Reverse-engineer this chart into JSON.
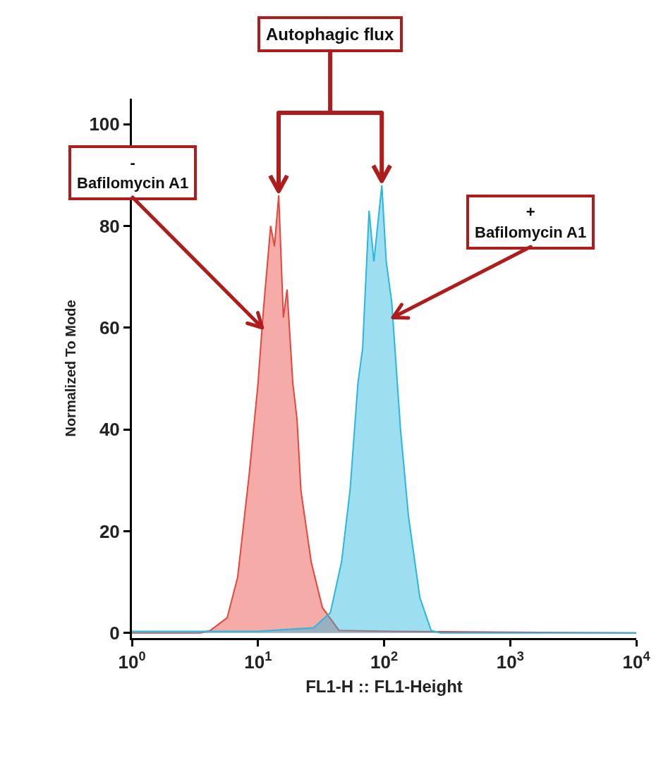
{
  "chart_data": {
    "type": "area",
    "log": "x",
    "xlabel": "FL1-H :: FL1-Height",
    "ylabel": "Normalized To Mode",
    "xlim": [
      1,
      10000
    ],
    "ylim": [
      -1,
      105
    ],
    "xticks": [
      {
        "value": 1,
        "label": "10$^{0}$"
      },
      {
        "value": 10,
        "label": "10$^{1}$"
      },
      {
        "value": 100,
        "label": "10$^{2}$"
      },
      {
        "value": 1000,
        "label": "10$^{3}$"
      },
      {
        "value": 10000,
        "label": "10$^{4}$"
      }
    ],
    "yticks": [
      0,
      20,
      40,
      60,
      80,
      100
    ],
    "grid": false,
    "series": [
      {
        "color": "#e8453c",
        "x": [
          1,
          3.5,
          4.2,
          5.7,
          6.9,
          8.5,
          10,
          11,
          12.6,
          13.5,
          14.6,
          15.9,
          17,
          18.9,
          20.4,
          21.9,
          26.4,
          32.4,
          43.9,
          120,
          10000
        ],
        "values": [
          0,
          0,
          0.5,
          3,
          11,
          31,
          49,
          63,
          80,
          76,
          86,
          62,
          67.5,
          49,
          42,
          28,
          14,
          5,
          0.5,
          0.3,
          0
        ]
      },
      {
        "color": "#29b6e0",
        "x": [
          1,
          10,
          20,
          27.6,
          37.5,
          46,
          53.7,
          62,
          67.6,
          76,
          83,
          96,
          104,
          115,
          135,
          156,
          192,
          236,
          280,
          10000
        ],
        "values": [
          0.3,
          0.3,
          0.8,
          1,
          4,
          14,
          28,
          49,
          56,
          83,
          73,
          88,
          73,
          65,
          40,
          23,
          7,
          0.5,
          0,
          0
        ]
      }
    ],
    "annotations": [
      "Autophagic flux",
      {
        "text": "-\nBafilomycin A1",
        "x": 10.8,
        "y": 60
      },
      {
        "text": "+\nBafilomycin A1",
        "x": 117,
        "y": 62
      }
    ]
  }
}
